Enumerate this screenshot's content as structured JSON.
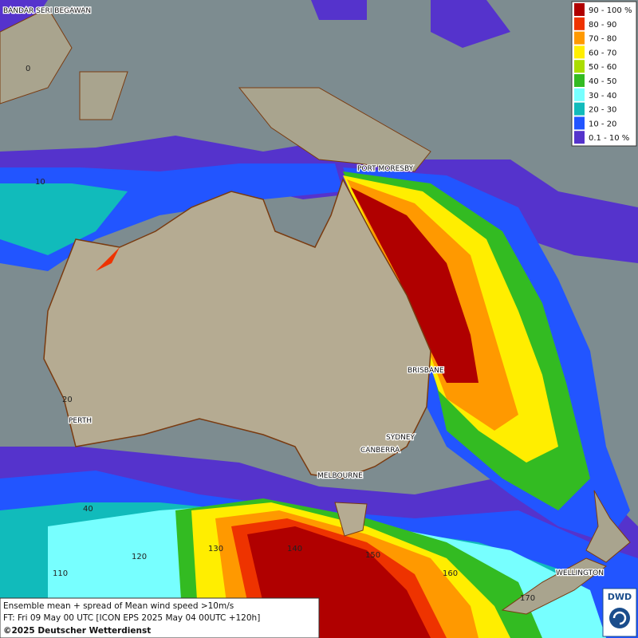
{
  "map": {
    "cities": [
      "BANDAR SERI BEGAWAN",
      "PORT MORESBY",
      "BRISBANE",
      "PERTH",
      "SYDNEY",
      "CANBERRA",
      "MELBOURNE",
      "WELLINGTON"
    ],
    "grid_labels": [
      "0",
      "10",
      "20",
      "40",
      "110",
      "120",
      "130",
      "140",
      "150",
      "160",
      "170"
    ]
  },
  "legend": {
    "items": [
      {
        "label": "90 - 100 %",
        "color": "#b00000"
      },
      {
        "label": "80 - 90",
        "color": "#ee3300"
      },
      {
        "label": "70 - 80",
        "color": "#ff9900"
      },
      {
        "label": "60 - 70",
        "color": "#ffee00"
      },
      {
        "label": "50 - 60",
        "color": "#aadd00"
      },
      {
        "label": "40 - 50",
        "color": "#33bb22"
      },
      {
        "label": "30 - 40",
        "color": "#77ffff"
      },
      {
        "label": "20 - 30",
        "color": "#11bbbb"
      },
      {
        "label": "10 - 20",
        "color": "#2255ff"
      },
      {
        "label": "0.1 - 10 %",
        "color": "#5533cc"
      }
    ]
  },
  "info": {
    "lines": [
      "Ensemble mean + spread of Mean wind speed >10m/s",
      "FT: Fri 09 May 00 UTC [ICON EPS 2025 May 04 00UTC +120h]"
    ],
    "copyright": "©2025 Deutscher Wetterdienst"
  },
  "logo": "DWD"
}
